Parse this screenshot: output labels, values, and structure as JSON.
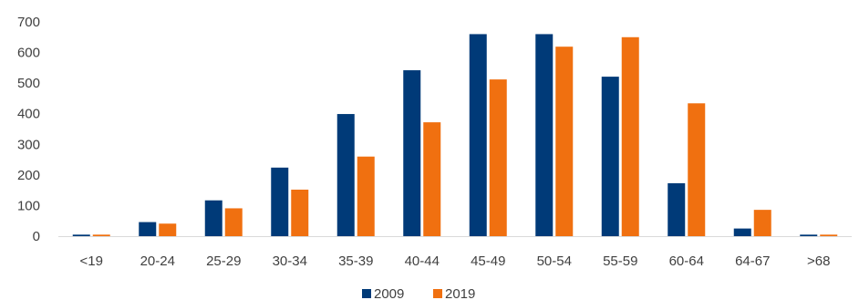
{
  "chart_data": {
    "type": "bar",
    "categories": [
      "<19",
      "20-24",
      "25-29",
      "30-34",
      "35-39",
      "40-44",
      "45-49",
      "50-54",
      "55-59",
      "60-64",
      "64-67",
      ">68"
    ],
    "series": [
      {
        "name": "2009",
        "color": "#003a78",
        "values": [
          5,
          46,
          117,
          224,
          399,
          542,
          660,
          660,
          521,
          173,
          25,
          5
        ]
      },
      {
        "name": "2019",
        "color": "#f07010",
        "values": [
          5,
          41,
          91,
          152,
          260,
          372,
          512,
          619,
          650,
          434,
          86,
          5
        ]
      }
    ],
    "ylim": [
      0,
      700
    ],
    "yticks": [
      0,
      100,
      200,
      300,
      400,
      500,
      600,
      700
    ],
    "grid": false,
    "legend": "bottom-center",
    "title": "",
    "xlabel": "",
    "ylabel": ""
  }
}
